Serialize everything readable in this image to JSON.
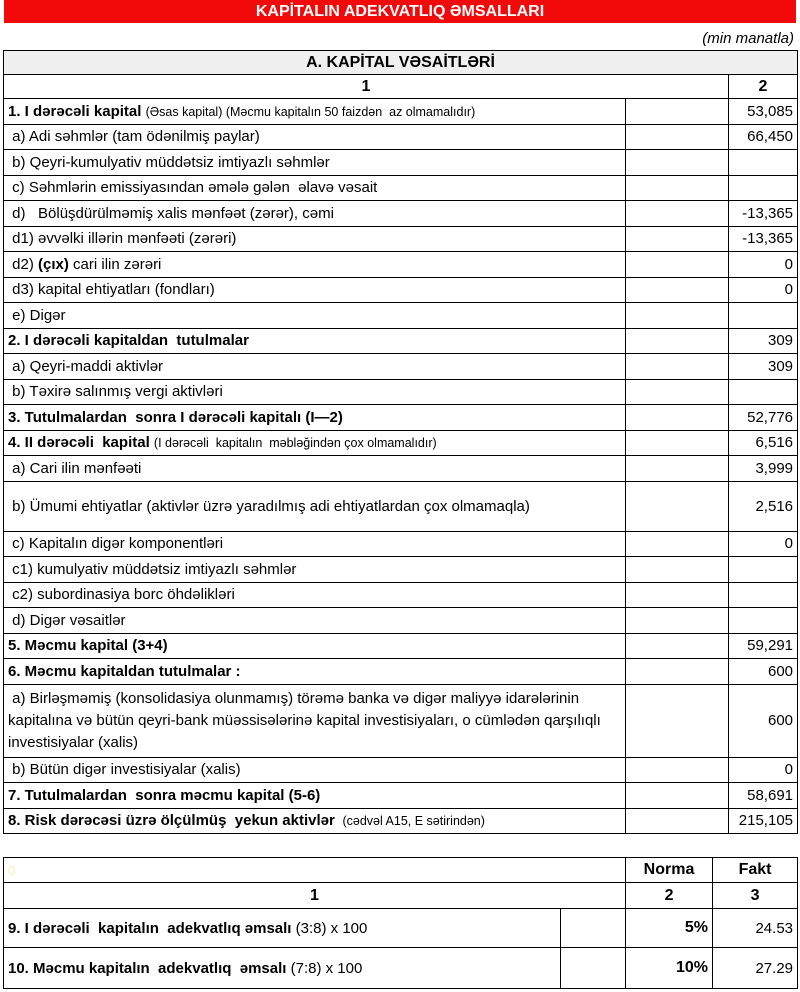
{
  "title": "KAPİTALIN ADEKVATLIQ ƏMSALLARI",
  "unit": "(min manatla)",
  "section_a": {
    "header": "A. KAPİTAL VƏSAİTLƏRİ",
    "col1": "1",
    "col2": "2",
    "rows": [
      {
        "parts": [
          {
            "t": "1. I dərəcəli kapital ",
            "b": true
          },
          {
            "t": "(Əsas kapital) (Məcmu kapitalın 50 faizdən  az olmamalıdır)",
            "n": true
          }
        ],
        "value": "53,085"
      },
      {
        "parts": [
          {
            "t": " a) Adi səhmlər (tam ödənilmiş paylar)"
          }
        ],
        "value": "66,450"
      },
      {
        "parts": [
          {
            "t": " b) Qeyri-kumulyativ müddətsiz imtiyazlı səhmlər"
          }
        ],
        "value": ""
      },
      {
        "parts": [
          {
            "t": " c) Səhmlərin emissiyasından əmələ gələn  əlavə vəsait"
          }
        ],
        "value": ""
      },
      {
        "parts": [
          {
            "t": " d)   Bölüşdürülməmiş xalis mənfəət (zərər), cəmi"
          }
        ],
        "value": "-13,365"
      },
      {
        "parts": [
          {
            "t": " d1) əvvəlki illərin mənfəəti (zərəri)"
          }
        ],
        "value": "-13,365"
      },
      {
        "parts": [
          {
            "t": " d2) "
          },
          {
            "t": "(çıx)",
            "b": true
          },
          {
            "t": " cari ilin zərəri"
          }
        ],
        "value": "0"
      },
      {
        "parts": [
          {
            "t": " d3) kapital ehtiyatları (fondları)"
          }
        ],
        "value": "0"
      },
      {
        "parts": [
          {
            "t": " e) Digər"
          }
        ],
        "value": ""
      },
      {
        "parts": [
          {
            "t": "2. I dərəcəli kapitaldan  tutulmalar",
            "b": true
          }
        ],
        "value": "309"
      },
      {
        "parts": [
          {
            "t": " a) Qeyri-maddi aktivlər"
          }
        ],
        "value": "309"
      },
      {
        "parts": [
          {
            "t": " b) Təxirə salınmış vergi aktivləri"
          }
        ],
        "value": ""
      },
      {
        "parts": [
          {
            "t": "3. Tutulmalardan  sonra I dərəcəli kapitalı (I—2)",
            "b": true
          }
        ],
        "value": "52,776"
      },
      {
        "parts": [
          {
            "t": "4. II dərəcəli  kapital ",
            "b": true
          },
          {
            "t": "(I dərəcəli  kapitalın  məbləğindən çox olmamalıdır)",
            "n": true
          }
        ],
        "value": "6,516"
      },
      {
        "parts": [
          {
            "t": " a) Cari ilin mənfəəti"
          }
        ],
        "value": "3,999"
      },
      {
        "parts": [
          {
            "t": " b) Ümumi ehtiyatlar (aktivlər üzrə yaradılmış adi ehtiyatlardan çox olmamaqla)"
          }
        ],
        "value": "2,516",
        "h": 50
      },
      {
        "parts": [
          {
            "t": " c) Kapitalın digər komponentləri"
          }
        ],
        "value": "0"
      },
      {
        "parts": [
          {
            "t": " c1) kumulyativ müddətsiz imtiyazlı səhmlər"
          }
        ],
        "value": ""
      },
      {
        "parts": [
          {
            "t": " c2) subordinasiya borc öhdəlikləri"
          }
        ],
        "value": ""
      },
      {
        "parts": [
          {
            "t": " d) Digər vəsaitlər"
          }
        ],
        "value": ""
      },
      {
        "parts": [
          {
            "t": "5. Məcmu kapital (3+4)",
            "b": true
          }
        ],
        "value": "59,291"
      },
      {
        "parts": [
          {
            "t": "6. Məcmu kapitaldan tutulmalar :",
            "b": true
          }
        ],
        "value": "600"
      },
      {
        "parts": [
          {
            "t": " a) Birləşməmiş (konsolidasiya olunmamış) törəmə banka və digər maliyyə idarələrinin kapitalına və bütün qeyri-bank müəssisələrinə kapital investisiyaları, o cümlədən qarşılıqlı investisiyalar (xalis)"
          }
        ],
        "value": "600",
        "h": 73,
        "wrap": true
      },
      {
        "parts": [
          {
            "t": " b) Bütün digər investisiyalar (xalis)"
          }
        ],
        "value": "0"
      },
      {
        "parts": [
          {
            "t": "7. Tutulmalardan  sonra məcmu kapital (5-6)",
            "b": true
          }
        ],
        "value": "58,691"
      },
      {
        "parts": [
          {
            "t": "8. Risk dərəcəsi üzrə ölçülmüş  yekun aktivlər ",
            "b": true
          },
          {
            "t": " (cədvəl A15, E sətirindən)",
            "n": true
          }
        ],
        "value": "215,105"
      }
    ]
  },
  "section_b": {
    "corner": "0",
    "norma_label": "Norma",
    "fakt_label": "Fakt",
    "col1": "1",
    "col2": "2",
    "col3": "3",
    "rows": [
      {
        "bold": "9. I dərəcəli  kapitalın  adekvatlıq əmsalı ",
        "rest": "(3:8) x 100",
        "norma": "5%",
        "fakt": "24.53"
      },
      {
        "bold": "10. Məcmu kapitalın  adekvatlıq  əmsalı ",
        "rest": "(7:8) x 100",
        "norma": "10%",
        "fakt": "27.29"
      }
    ]
  }
}
